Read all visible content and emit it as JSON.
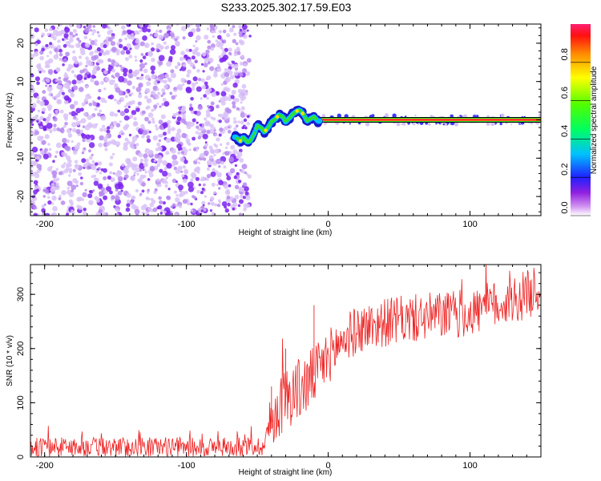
{
  "title": "S233.2025.302.17.59.E03",
  "colors": {
    "plot_bg": "#ffffff",
    "line_red": "#ee2222",
    "scatter_purple": "#7a22ee",
    "scatter_faint": "#d9c2f7"
  },
  "chart_data": [
    {
      "type": "heatmap",
      "title": "",
      "xlabel": "Height of straight line (km)",
      "ylabel": "Frequency (Hz)",
      "xlim": [
        -210,
        150
      ],
      "ylim": [
        -25,
        25
      ],
      "xticks": [
        -200,
        -100,
        0,
        100
      ],
      "xtick_labels": [
        "-200",
        "-100",
        "0",
        "100"
      ],
      "yticks": [
        -20,
        -10,
        0,
        10,
        20
      ],
      "ytick_labels": [
        "-20",
        "-10",
        "0",
        "10",
        "20"
      ],
      "noise_region_km": [
        -210,
        -55
      ],
      "carrier_track": {
        "x": [
          -65,
          -62,
          -60,
          -57,
          -55,
          -52,
          -50,
          -47,
          -45,
          -42,
          -40,
          -37,
          -35,
          -32,
          -30,
          -27,
          -25,
          -22,
          -20,
          -17,
          -15,
          -12,
          -10,
          -7,
          -5,
          0,
          10,
          20,
          50,
          100,
          150
        ],
        "y": [
          -4.5,
          -5.5,
          -4.5,
          -5.8,
          -5.5,
          -3.5,
          -1.5,
          -2.2,
          -3.2,
          -1.8,
          -0.5,
          0.3,
          1.3,
          0.8,
          -0.5,
          0.6,
          1.5,
          2.3,
          2.6,
          1.2,
          -0.3,
          0.4,
          0.8,
          -0.4,
          -0.2,
          0.1,
          0,
          0,
          0,
          0,
          0
        ]
      },
      "colorbar": {
        "label": "Normalized spectral amplitude",
        "range": [
          0,
          1
        ],
        "ticks": [
          0,
          0.2,
          0.4,
          0.6,
          0.8
        ],
        "tick_labels": [
          "0.0",
          "0.2",
          "0.4",
          "0.6",
          "0.8"
        ]
      }
    },
    {
      "type": "line",
      "title": "",
      "xlabel": "Height of straight line (km)",
      "ylabel": "SNR (10 * v/v)",
      "xlim": [
        -210,
        150
      ],
      "ylim": [
        0,
        355
      ],
      "xticks": [
        -200,
        -100,
        0,
        100
      ],
      "xtick_labels": [
        "-200",
        "-100",
        "0",
        "100"
      ],
      "yticks": [
        0,
        100,
        200,
        300
      ],
      "ytick_labels": [
        "0",
        "100",
        "200",
        "300"
      ],
      "series": [
        {
          "name": "SNR",
          "x": [
            -210,
            -200,
            -180,
            -160,
            -140,
            -120,
            -100,
            -80,
            -60,
            -45,
            -42,
            -35,
            -30,
            -25,
            -20,
            -15,
            -10,
            -5,
            0,
            5,
            10,
            15,
            20,
            25,
            30,
            40,
            50,
            60,
            70,
            80,
            90,
            100,
            110,
            120,
            130,
            140,
            150
          ],
          "values": [
            18,
            18,
            19,
            18,
            18,
            19,
            18,
            18,
            19,
            20,
            55,
            90,
            110,
            120,
            125,
            135,
            150,
            165,
            185,
            200,
            215,
            225,
            232,
            238,
            242,
            248,
            252,
            255,
            258,
            262,
            263,
            265,
            275,
            282,
            288,
            300,
            312
          ],
          "spread": [
            18,
            18,
            18,
            18,
            18,
            18,
            18,
            18,
            18,
            18,
            45,
            55,
            60,
            60,
            60,
            60,
            55,
            55,
            50,
            50,
            45,
            45,
            45,
            45,
            45,
            45,
            45,
            45,
            45,
            45,
            45,
            45,
            45,
            45,
            45,
            45,
            45
          ]
        }
      ]
    }
  ]
}
